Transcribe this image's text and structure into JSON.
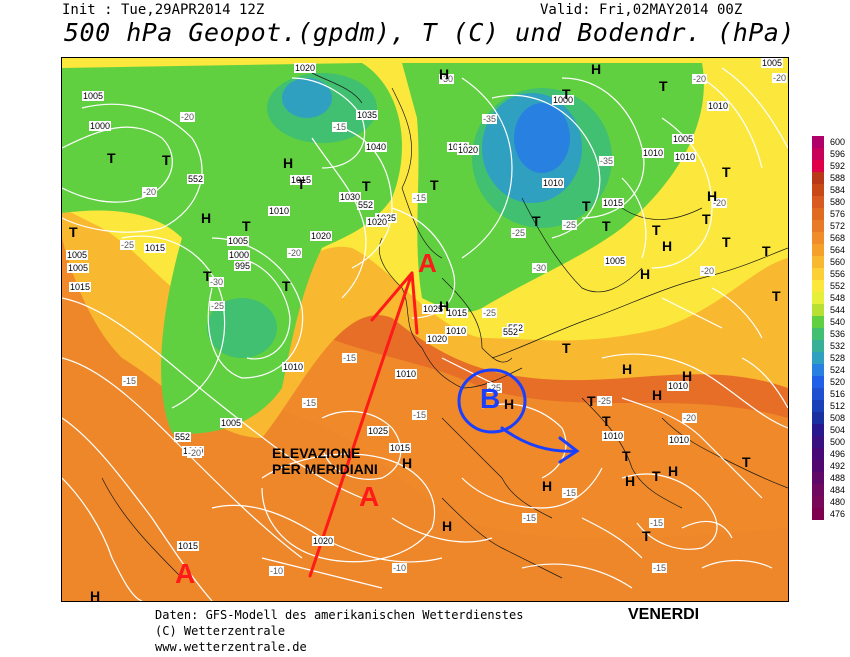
{
  "header": {
    "init": "Init : Tue,29APR2014 12Z",
    "valid": "Valid: Fri,02MAY2014 00Z",
    "title": "500 hPa Geopot.(gpdm), T (C) und Bodendr. (hPa)"
  },
  "pressure_labels": [
    "1020",
    "1005",
    "1000",
    "1035",
    "1040",
    "1015",
    "1010",
    "1030",
    "1025",
    "1005",
    "1000",
    "995",
    "1020",
    "1020",
    "1015",
    "1005",
    "1005",
    "1015",
    "1010",
    "1025",
    "1020",
    "1010",
    "1015",
    "1010",
    "1025",
    "1020",
    "1000",
    "1010",
    "1005",
    "1010",
    "1015",
    "1005",
    "1010",
    "1010",
    "1010",
    "1010",
    "1015",
    "1005",
    "1010",
    "1020",
    "1010",
    "1010",
    "1005",
    "1015"
  ],
  "temp_labels": [
    "-20",
    "-30",
    "-25",
    "-20",
    "-25",
    "-15",
    "-35",
    "-30",
    "-25",
    "-20",
    "-35",
    "-25",
    "-30",
    "-25",
    "-15",
    "-15",
    "-20",
    "-15",
    "-15",
    "-10",
    "-20",
    "-25",
    "-20",
    "-25",
    "-20",
    "-15",
    "-10",
    "-15",
    "-15",
    "-15",
    "-20",
    "-20",
    "-15"
  ],
  "extra_labels": [
    "552",
    "552",
    "552",
    "552",
    "552"
  ],
  "highs": [
    "H",
    "H",
    "H",
    "H",
    "H",
    "H",
    "H",
    "H",
    "H",
    "H",
    "H",
    "H",
    "H",
    "H",
    "H",
    "H",
    "H",
    "H"
  ],
  "lows": [
    "T",
    "T",
    "T",
    "T",
    "T",
    "T",
    "T",
    "T",
    "T",
    "T",
    "T",
    "T",
    "T",
    "T",
    "T",
    "T",
    "T",
    "T",
    "T",
    "T",
    "T",
    "T",
    "T",
    "T",
    "T",
    "T",
    "T"
  ],
  "annotations": {
    "a_top": "A",
    "a_center": "A",
    "a_bottom": "A",
    "b_center": "B",
    "elevazione_1": "ELEVAZIONE",
    "elevazione_2": "PER MERIDIANI",
    "venerdi": "VENERDI"
  },
  "legend": {
    "levels": [
      "600",
      "596",
      "592",
      "588",
      "584",
      "580",
      "576",
      "572",
      "568",
      "564",
      "560",
      "556",
      "552",
      "548",
      "544",
      "540",
      "536",
      "532",
      "528",
      "524",
      "520",
      "516",
      "512",
      "508",
      "504",
      "500",
      "496",
      "492",
      "488",
      "484",
      "480",
      "476"
    ],
    "colors": [
      "#b0006a",
      "#c8005a",
      "#e0004a",
      "#b83818",
      "#c84818",
      "#d85a20",
      "#e06a20",
      "#e87a28",
      "#f08c2a",
      "#f6a02c",
      "#f8b830",
      "#fad036",
      "#fce83c",
      "#e6f03a",
      "#b8e032",
      "#60d040",
      "#40c070",
      "#38b098",
      "#30a0c0",
      "#2880e0",
      "#2060e8",
      "#2050d0",
      "#1840b8",
      "#1830a0",
      "#281890",
      "#381080",
      "#480878",
      "#500870",
      "#600868",
      "#700860",
      "#780858",
      "#800050"
    ],
    "accent": "#4b2a86"
  },
  "footer": {
    "line1": "Daten: GFS-Modell des amerikanischen Wetterdienstes",
    "line2": "(C) Wetterzentrale",
    "line3": "www.wetterzentrale.de"
  },
  "colors": {
    "annotation_red": "#ff1a1a",
    "annotation_blue": "#1a3fff",
    "contour": "#ffffff"
  }
}
